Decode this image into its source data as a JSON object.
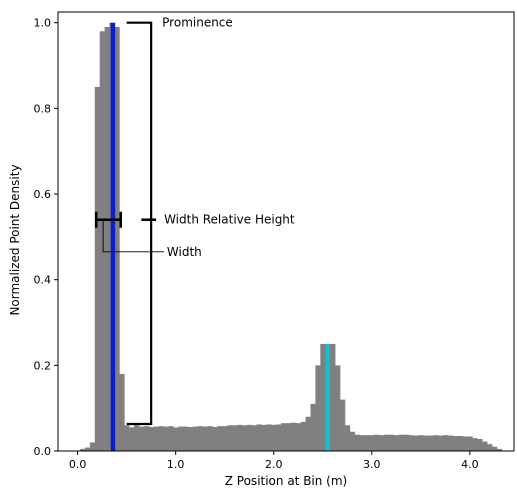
{
  "chart_data": {
    "type": "bar",
    "xlabel": "Z Position at Bin (m)",
    "ylabel": "Normalized Point Density",
    "xlim": [
      -0.2,
      4.45
    ],
    "ylim": [
      0,
      1.025
    ],
    "xticks": [
      0.0,
      1.0,
      2.0,
      3.0,
      4.0
    ],
    "xtick_labels": [
      "0.0",
      "1.0",
      "2.0",
      "3.0",
      "4.0"
    ],
    "yticks": [
      0.0,
      0.2,
      0.4,
      0.6,
      0.8,
      1.0
    ],
    "ytick_labels": [
      "0.0",
      "0.2",
      "0.4",
      "0.6",
      "0.8",
      "1.0"
    ],
    "grid": false,
    "bin_width": 0.05,
    "histogram": {
      "x": [
        0.05,
        0.1,
        0.15,
        0.2,
        0.25,
        0.3,
        0.35,
        0.4,
        0.45,
        0.5,
        0.55,
        0.6,
        0.65,
        0.7,
        0.75,
        0.8,
        0.85,
        0.9,
        0.95,
        1.0,
        1.05,
        1.1,
        1.15,
        1.2,
        1.25,
        1.3,
        1.35,
        1.4,
        1.45,
        1.5,
        1.55,
        1.6,
        1.65,
        1.7,
        1.75,
        1.8,
        1.85,
        1.9,
        1.95,
        2.0,
        2.05,
        2.1,
        2.15,
        2.2,
        2.25,
        2.3,
        2.35,
        2.4,
        2.45,
        2.5,
        2.55,
        2.6,
        2.65,
        2.7,
        2.75,
        2.8,
        2.85,
        2.9,
        2.95,
        3.0,
        3.05,
        3.1,
        3.15,
        3.2,
        3.25,
        3.3,
        3.35,
        3.4,
        3.45,
        3.5,
        3.55,
        3.6,
        3.65,
        3.7,
        3.75,
        3.8,
        3.85,
        3.9,
        3.95,
        4.0,
        4.05,
        4.1,
        4.15,
        4.2,
        4.25,
        4.3
      ],
      "values": [
        0.005,
        0.008,
        0.02,
        0.85,
        0.98,
        0.99,
        1.0,
        0.99,
        0.18,
        0.06,
        0.055,
        0.06,
        0.057,
        0.058,
        0.056,
        0.057,
        0.058,
        0.057,
        0.058,
        0.055,
        0.057,
        0.057,
        0.056,
        0.057,
        0.058,
        0.057,
        0.058,
        0.056,
        0.058,
        0.058,
        0.06,
        0.06,
        0.061,
        0.06,
        0.061,
        0.06,
        0.062,
        0.061,
        0.062,
        0.061,
        0.062,
        0.065,
        0.065,
        0.066,
        0.065,
        0.068,
        0.08,
        0.11,
        0.2,
        0.25,
        0.25,
        0.25,
        0.2,
        0.12,
        0.06,
        0.045,
        0.038,
        0.037,
        0.037,
        0.037,
        0.038,
        0.037,
        0.038,
        0.038,
        0.037,
        0.038,
        0.038,
        0.037,
        0.036,
        0.037,
        0.036,
        0.036,
        0.037,
        0.036,
        0.037,
        0.036,
        0.035,
        0.035,
        0.034,
        0.034,
        0.03,
        0.028,
        0.022,
        0.016,
        0.01,
        0.005
      ],
      "color": "#808080"
    },
    "peaks": [
      {
        "x": 0.36,
        "height": 1.0,
        "color": "#0a1ecc"
      },
      {
        "x": 2.55,
        "height": 0.25,
        "color": "#17becf"
      }
    ],
    "annotations": {
      "prominence": {
        "label": "Prominence",
        "x_start": 0.5,
        "x_end": 0.75,
        "y_top": 1.0,
        "y_bottom": 0.063
      },
      "width_relative_height": {
        "label": "Width Relative Height",
        "y": 0.54,
        "marker_x": [
          0.65,
          0.8
        ]
      },
      "width": {
        "label": "Width",
        "x_left": 0.19,
        "x_right": 0.44,
        "y": 0.54,
        "leader_x": 0.26,
        "leader_y": 0.465,
        "leader_end_x": 0.88
      }
    },
    "colors": {
      "bar": "#808080",
      "axis": "#000000",
      "annotation": "#000000"
    }
  }
}
